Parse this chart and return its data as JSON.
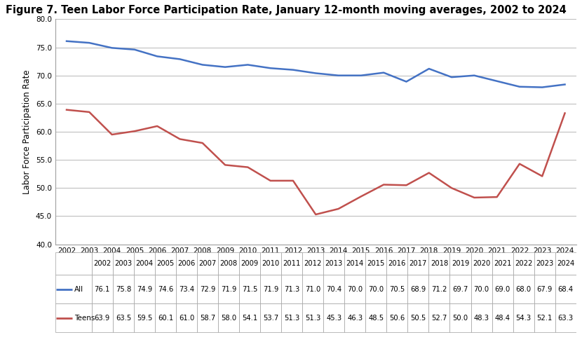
{
  "title": "Figure 7. Teen Labor Force Participation Rate, January 12-month moving averages, 2002 to 2024",
  "ylabel": "Labor Force Participation Rate",
  "years": [
    2002,
    2003,
    2004,
    2005,
    2006,
    2007,
    2008,
    2009,
    2010,
    2011,
    2012,
    2013,
    2014,
    2015,
    2016,
    2017,
    2018,
    2019,
    2020,
    2021,
    2022,
    2023,
    2024
  ],
  "all_values": [
    76.1,
    75.8,
    74.9,
    74.6,
    73.4,
    72.9,
    71.9,
    71.5,
    71.9,
    71.3,
    71.0,
    70.4,
    70.0,
    70.0,
    70.5,
    68.9,
    71.2,
    69.7,
    70.0,
    69.0,
    68.0,
    67.9,
    68.4
  ],
  "teen_values": [
    63.9,
    63.5,
    59.5,
    60.1,
    61.0,
    58.7,
    58.0,
    54.1,
    53.7,
    51.3,
    51.3,
    45.3,
    46.3,
    48.5,
    50.6,
    50.5,
    52.7,
    50.0,
    48.3,
    48.4,
    54.3,
    52.1,
    63.3
  ],
  "all_color": "#4472C4",
  "teen_color": "#C0504D",
  "ylim_min": 40.0,
  "ylim_max": 80.0,
  "yticks": [
    40.0,
    45.0,
    50.0,
    55.0,
    60.0,
    65.0,
    70.0,
    75.0,
    80.0
  ],
  "bg_color": "#FFFFFF",
  "grid_color": "#BFBFBF",
  "title_fontsize": 10.5,
  "axis_label_fontsize": 8.5,
  "tick_fontsize": 7.5,
  "table_fontsize": 7.2,
  "line_width": 1.8
}
